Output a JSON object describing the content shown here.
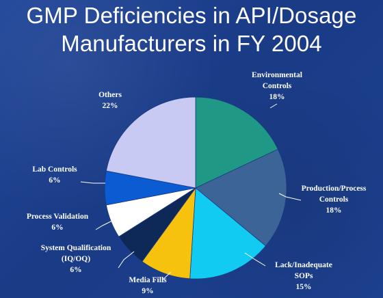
{
  "title_line1": "GMP Deficiencies in API/Dosage",
  "title_line2": "Manufacturers in FY 2004",
  "chart_data": {
    "type": "pie",
    "title": "GMP Deficiencies in API/Dosage Manufacturers in FY 2004",
    "legend": "none",
    "slices": [
      {
        "lines": [
          "Environmental",
          "Controls"
        ],
        "pct_label": "18%",
        "value": 18,
        "color": "#1f9985"
      },
      {
        "lines": [
          "Production/Process",
          "Controls"
        ],
        "pct_label": "18%",
        "value": 18,
        "color": "#3d6496"
      },
      {
        "lines": [
          "Lack/Inadequate",
          "SOPs"
        ],
        "pct_label": "15%",
        "value": 15,
        "color": "#12cbf2"
      },
      {
        "lines": [
          "Media Fills"
        ],
        "pct_label": "9%",
        "value": 9,
        "color": "#f7c20e"
      },
      {
        "lines": [
          "System Qualification",
          "(IQ/OQ)"
        ],
        "pct_label": "6%",
        "value": 6,
        "color": "#0e2958"
      },
      {
        "lines": [
          "Process Validation"
        ],
        "pct_label": "6%",
        "value": 6,
        "color": "#ffffff"
      },
      {
        "lines": [
          "Lab Controls"
        ],
        "pct_label": "6%",
        "value": 6,
        "color": "#0b5bd3"
      },
      {
        "lines": [
          "Others"
        ],
        "pct_label": "22%",
        "value": 22,
        "color": "#c9caf4"
      }
    ]
  }
}
